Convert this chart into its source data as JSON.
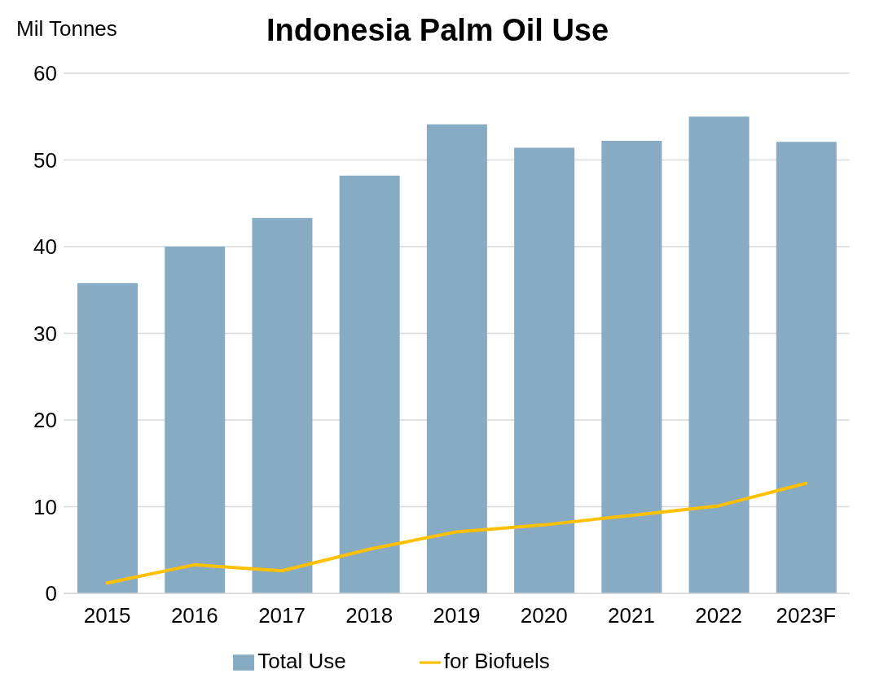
{
  "chart_data": {
    "type": "bar",
    "title": "Indonesia Palm Oil Use",
    "ylabel": "Mil Tonnes",
    "categories": [
      "2015",
      "2016",
      "2017",
      "2018",
      "2019",
      "2020",
      "2021",
      "2022",
      "2023F"
    ],
    "series": [
      {
        "name": "Total Use",
        "color": "#87abc2",
        "values": [
          35.8,
          40.0,
          43.3,
          48.2,
          54.1,
          51.4,
          52.2,
          55.0,
          52.1
        ]
      },
      {
        "name": "for Biofuels",
        "type": "line",
        "color": "#ffc000",
        "values": [
          1.2,
          3.3,
          2.6,
          5.1,
          7.1,
          7.9,
          9.0,
          10.1,
          12.7
        ]
      }
    ],
    "ylim": [
      0,
      60
    ],
    "yticks": [
      0,
      10,
      20,
      30,
      40,
      50,
      60
    ],
    "grid": "y",
    "legend": "bottom",
    "marker": "none"
  }
}
